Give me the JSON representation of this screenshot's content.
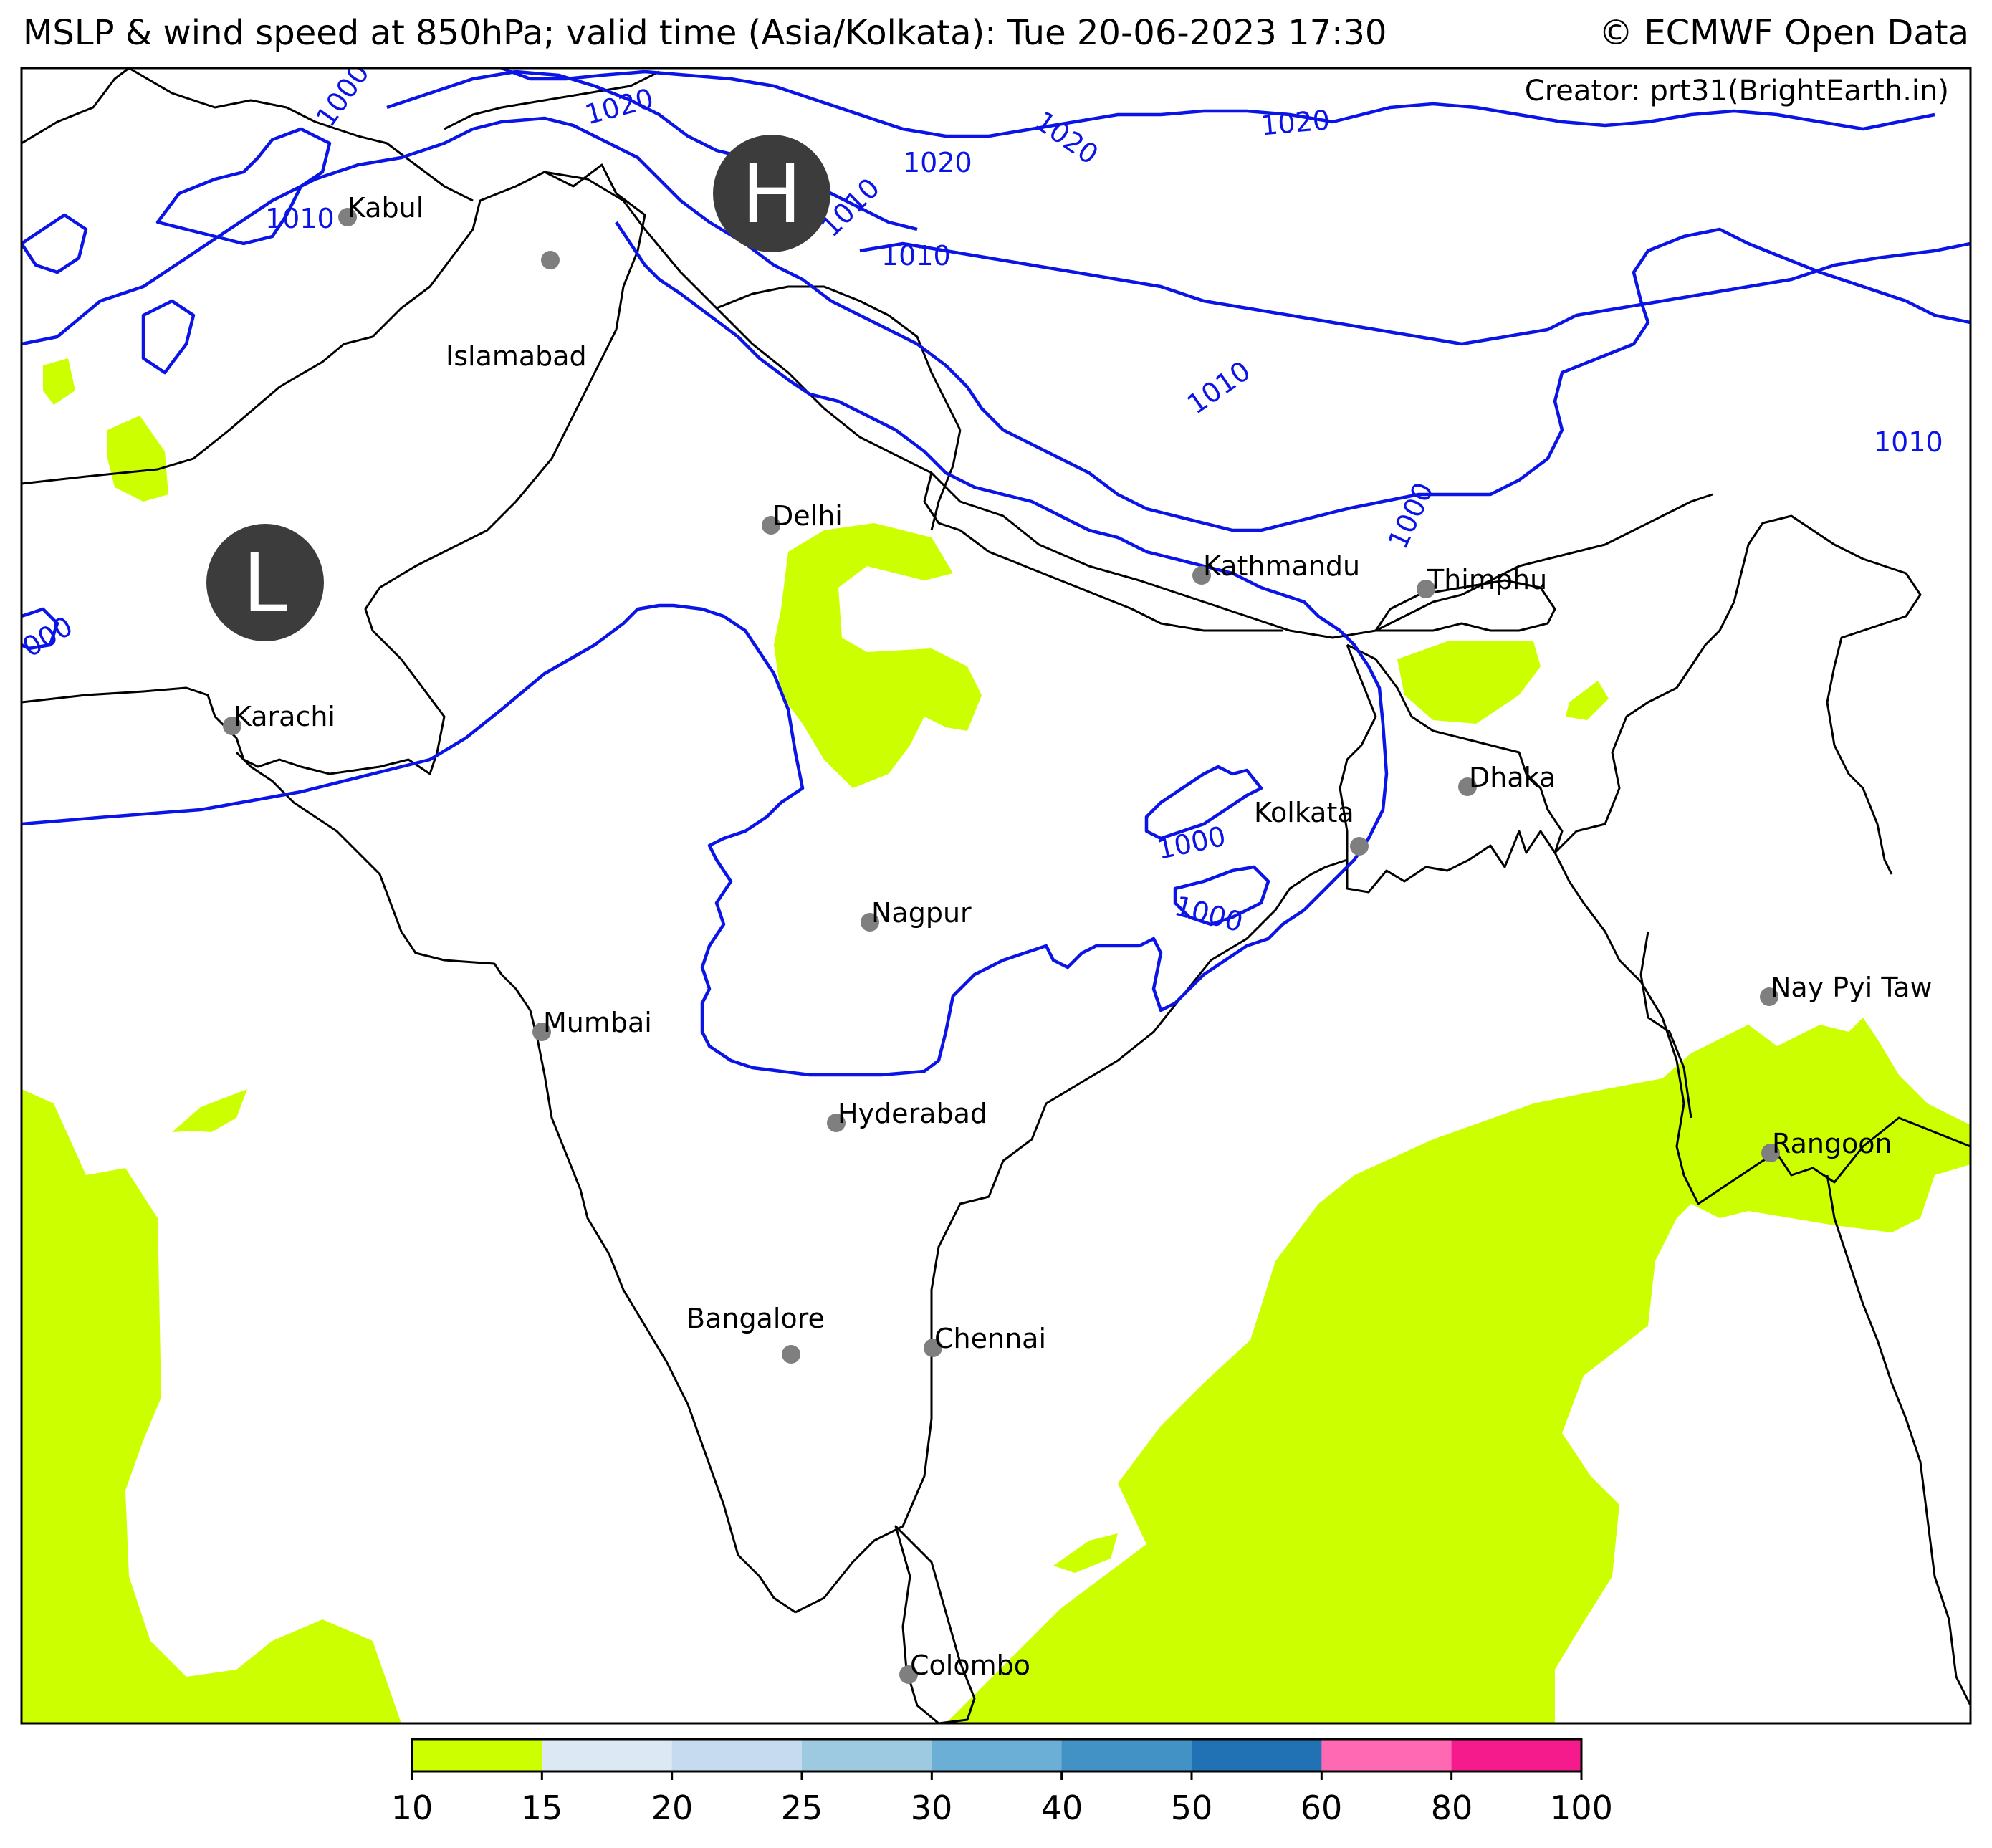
{
  "header": {
    "title": "MSLP & wind speed at 850hPa; valid time (Asia/Kolkata): Tue 20-06-2023 17:30",
    "copyright": "© ECMWF Open Data",
    "creator": "Creator: prt31(BrightEarth.in)"
  },
  "pressure_centers": [
    {
      "label": "H",
      "name": "high"
    },
    {
      "label": "L",
      "name": "low"
    }
  ],
  "cities": [
    {
      "name": "Kabul"
    },
    {
      "name": "Islamabad"
    },
    {
      "name": "Delhi"
    },
    {
      "name": "Karachi"
    },
    {
      "name": "Kathmandu"
    },
    {
      "name": "Thimphu"
    },
    {
      "name": "Dhaka"
    },
    {
      "name": "Kolkata"
    },
    {
      "name": "Nagpur"
    },
    {
      "name": "Mumbai"
    },
    {
      "name": "Hyderabad"
    },
    {
      "name": "Bangalore"
    },
    {
      "name": "Chennai"
    },
    {
      "name": "Nay Pyi Taw"
    },
    {
      "name": "Rangoon"
    },
    {
      "name": "Colombo"
    }
  ],
  "isobar_labels": [
    "1000",
    "1010",
    "1020",
    "1020",
    "1020",
    "1020",
    "1010",
    "1010",
    "1010",
    "1010",
    "1000",
    "1000",
    "1000",
    "000"
  ],
  "colorbar": {
    "ticks": [
      "10",
      "15",
      "20",
      "25",
      "30",
      "40",
      "50",
      "60",
      "80",
      "100"
    ],
    "colors": [
      "#ccff00",
      "#dde8f5",
      "#c6dbef",
      "#9ecae1",
      "#6baed6",
      "#4292c6",
      "#2171b5",
      "#ff69b4",
      "#f51b8c"
    ]
  },
  "colors": {
    "isobar": "#0a14e6",
    "wind_10_15": "#ccff00",
    "coast": "#000000",
    "city_dot": "#7f7f7f",
    "center_disc": "#3c3c3c"
  }
}
